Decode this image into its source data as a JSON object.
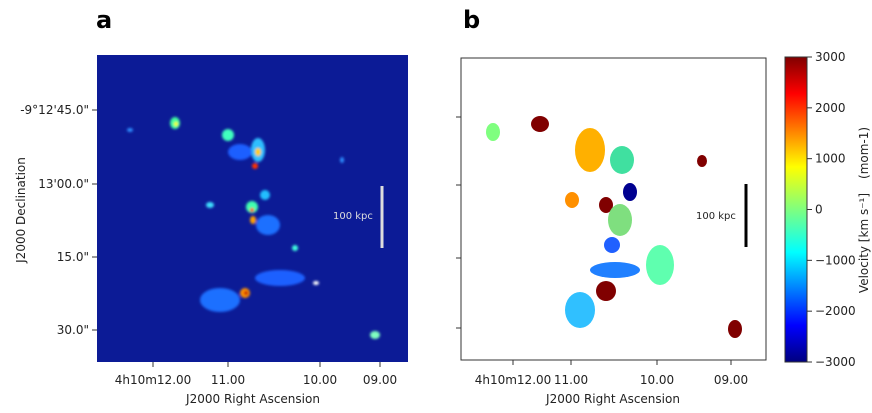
{
  "panels": [
    {
      "label": "a",
      "x_label": "J2000 Right Ascension",
      "y_label": "J2000 Declination",
      "xticks": [
        "4h10m12.00",
        "11.00",
        "10.00",
        "09.00"
      ],
      "yticks": [
        "-9°12'45.0\"",
        "13'00.0\"",
        "15.0\"",
        "30.0\""
      ],
      "scale_bar": "100 kpc"
    },
    {
      "label": "b",
      "x_label": "J2000 Right Ascension",
      "xticks": [
        "4h10m12.00",
        "11.00",
        "10.00",
        "09.00"
      ],
      "scale_bar": "100 kpc"
    }
  ],
  "colorbar": {
    "label": "Velocity [km s⁻¹]",
    "label_suffix": "(mom-1)",
    "lim": [
      -3000,
      3000
    ],
    "ticks": [
      3000,
      2000,
      1000,
      0,
      {
        "value": -1000,
        "label": "−1000"
      },
      {
        "value": -2000,
        "label": "−2000"
      },
      {
        "value": -3000,
        "label": "−3000"
      }
    ]
  }
}
